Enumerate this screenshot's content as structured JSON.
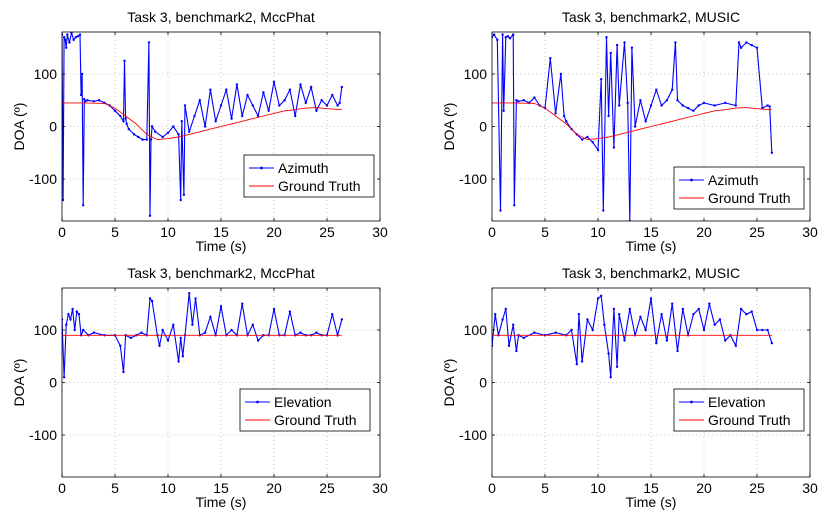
{
  "chart_data": [
    {
      "type": "line",
      "title": "Task 3, benchmark2, MccPhat",
      "xlabel": "Time (s)",
      "ylabel": "DOA (º)",
      "xlim": [
        0,
        30
      ],
      "ylim": [
        -180,
        180
      ],
      "xticks": [
        0,
        5,
        10,
        15,
        20,
        25,
        30
      ],
      "yticks": [
        -100,
        0,
        100
      ],
      "grid": true,
      "legend": "bottom-right",
      "series": [
        {
          "name": "Azimuth",
          "color": "#0000ff",
          "marker": "dot",
          "x": [
            0,
            0.1,
            0.2,
            0.3,
            0.4,
            0.5,
            0.7,
            0.9,
            1.1,
            1.3,
            1.5,
            1.7,
            1.8,
            1.9,
            2.0,
            2.1,
            2.2,
            2.4,
            3.0,
            3.5,
            4.0,
            4.5,
            5.0,
            5.5,
            5.8,
            5.9,
            6.0,
            6.1,
            6.3,
            6.8,
            7.2,
            7.6,
            8.0,
            8.2,
            8.3,
            8.4,
            8.5,
            8.8,
            9.5,
            10.0,
            10.5,
            11.0,
            11.2,
            11.3,
            11.5,
            11.6,
            12.0,
            12.5,
            13.0,
            13.5,
            14.0,
            14.5,
            15.0,
            15.5,
            16.0,
            16.5,
            17.0,
            17.5,
            18.0,
            18.5,
            19.0,
            19.5,
            20.0,
            20.5,
            21.0,
            21.5,
            22.0,
            22.5,
            23.0,
            23.5,
            24.0,
            24.5,
            25.0,
            25.5,
            26.0,
            26.2,
            26.4
          ],
          "y": [
            175,
            -140,
            170,
            165,
            150,
            175,
            160,
            178,
            165,
            170,
            172,
            175,
            60,
            100,
            -150,
            52,
            48,
            50,
            48,
            50,
            45,
            40,
            30,
            20,
            10,
            125,
            15,
            5,
            -5,
            -15,
            -20,
            -25,
            -25,
            160,
            -170,
            -25,
            0,
            -10,
            -20,
            -12,
            0,
            -15,
            -140,
            10,
            -130,
            40,
            -10,
            20,
            50,
            0,
            70,
            10,
            40,
            70,
            15,
            80,
            20,
            60,
            40,
            20,
            65,
            30,
            85,
            40,
            50,
            70,
            20,
            80,
            45,
            75,
            30,
            50,
            40,
            60,
            40,
            45,
            75
          ]
        },
        {
          "name": "Ground Truth",
          "color": "#ff0000",
          "marker": "none",
          "x": [
            0,
            2,
            4,
            5,
            6,
            7,
            8,
            9,
            10,
            11,
            12,
            13,
            14,
            15,
            16,
            17,
            18,
            19,
            20,
            21,
            22,
            23,
            24,
            25,
            26.4
          ],
          "y": [
            45,
            45,
            44,
            35,
            20,
            5,
            -15,
            -25,
            -23,
            -20,
            -15,
            -10,
            -5,
            0,
            5,
            10,
            15,
            20,
            25,
            30,
            32,
            35,
            36,
            34,
            32
          ]
        }
      ]
    },
    {
      "type": "line",
      "title": "Task 3, benchmark2, MUSIC",
      "xlabel": "Time (s)",
      "ylabel": "DOA (º)",
      "xlim": [
        0,
        30
      ],
      "ylim": [
        -180,
        180
      ],
      "xticks": [
        0,
        5,
        10,
        15,
        20,
        25,
        30
      ],
      "yticks": [
        -100,
        0,
        100
      ],
      "grid": true,
      "legend": "bottom-right",
      "series": [
        {
          "name": "Azimuth",
          "color": "#0000ff",
          "marker": "dot",
          "x": [
            0,
            0.2,
            0.5,
            0.8,
            1.0,
            1.1,
            1.3,
            1.5,
            1.7,
            2.0,
            2.1,
            2.3,
            2.5,
            3.0,
            3.5,
            4.0,
            4.5,
            5.0,
            5.5,
            6.0,
            6.5,
            6.8,
            7.0,
            7.5,
            8.0,
            8.5,
            9.0,
            9.5,
            10.0,
            10.3,
            10.5,
            10.8,
            11.0,
            11.2,
            11.5,
            11.8,
            12.0,
            12.5,
            12.8,
            13.0,
            13.2,
            13.5,
            14.0,
            14.5,
            15.0,
            15.5,
            16.0,
            16.5,
            17.0,
            17.3,
            17.5,
            18.0,
            18.5,
            19.0,
            19.5,
            20.0,
            21.0,
            22.0,
            23.0,
            23.3,
            23.5,
            24.0,
            24.5,
            25.0,
            25.5,
            26.0,
            26.2,
            26.4
          ],
          "y": [
            170,
            175,
            165,
            -160,
            175,
            30,
            170,
            172,
            168,
            175,
            -150,
            50,
            48,
            50,
            45,
            55,
            40,
            35,
            130,
            25,
            100,
            20,
            10,
            -5,
            -15,
            -25,
            -20,
            -30,
            -45,
            90,
            -160,
            170,
            20,
            140,
            -40,
            155,
            40,
            160,
            45,
            -180,
            150,
            0,
            50,
            10,
            40,
            70,
            40,
            50,
            70,
            160,
            50,
            40,
            35,
            30,
            40,
            45,
            40,
            45,
            40,
            160,
            150,
            160,
            155,
            150,
            35,
            40,
            38,
            -50
          ]
        },
        {
          "name": "Ground Truth",
          "color": "#ff0000",
          "marker": "none",
          "x": [
            0,
            2,
            4,
            5,
            6,
            7,
            8,
            9,
            10,
            11,
            12,
            13,
            14,
            15,
            16,
            17,
            18,
            19,
            20,
            21,
            22,
            23,
            24,
            25,
            26.4
          ],
          "y": [
            45,
            45,
            44,
            35,
            20,
            5,
            -15,
            -25,
            -23,
            -20,
            -15,
            -10,
            -5,
            0,
            5,
            10,
            15,
            20,
            25,
            30,
            32,
            35,
            36,
            34,
            32
          ]
        }
      ]
    },
    {
      "type": "line",
      "title": "Task 3, benchmark2, MccPhat",
      "xlabel": "Time (s)",
      "ylabel": "DOA (º)",
      "xlim": [
        0,
        30
      ],
      "ylim": [
        -180,
        180
      ],
      "xticks": [
        0,
        5,
        10,
        15,
        20,
        25,
        30
      ],
      "yticks": [
        -100,
        0,
        100
      ],
      "grid": true,
      "legend": "bottom-right",
      "series": [
        {
          "name": "Elevation",
          "color": "#0000ff",
          "marker": "dot",
          "x": [
            0,
            0.2,
            0.4,
            0.6,
            0.8,
            1.0,
            1.2,
            1.4,
            1.6,
            1.8,
            2.0,
            2.5,
            3.0,
            4.0,
            5.0,
            5.5,
            5.8,
            6.0,
            6.5,
            7.0,
            7.5,
            8.0,
            8.3,
            8.5,
            9.0,
            9.2,
            9.5,
            10.0,
            10.5,
            11.0,
            11.2,
            11.4,
            11.6,
            12.0,
            12.3,
            12.6,
            13.0,
            13.5,
            14.0,
            14.5,
            15.0,
            15.5,
            16.0,
            16.5,
            17.0,
            17.5,
            18.0,
            18.5,
            19.0,
            19.5,
            20.0,
            20.5,
            21.0,
            21.5,
            22.0,
            22.5,
            23.0,
            23.5,
            24.0,
            24.5,
            25.0,
            25.5,
            26.0,
            26.4
          ],
          "y": [
            120,
            10,
            110,
            130,
            120,
            140,
            100,
            135,
            130,
            90,
            100,
            90,
            95,
            90,
            90,
            70,
            20,
            90,
            85,
            90,
            95,
            90,
            160,
            155,
            90,
            70,
            100,
            80,
            110,
            40,
            85,
            50,
            90,
            170,
            110,
            160,
            90,
            95,
            125,
            90,
            145,
            90,
            100,
            90,
            150,
            90,
            110,
            80,
            90,
            90,
            140,
            90,
            90,
            135,
            90,
            95,
            90,
            90,
            95,
            90,
            90,
            130,
            90,
            120
          ]
        },
        {
          "name": "Ground Truth",
          "color": "#ff0000",
          "marker": "none",
          "x": [
            0,
            26.4
          ],
          "y": [
            90,
            90
          ]
        }
      ]
    },
    {
      "type": "line",
      "title": "Task 3, benchmark2, MUSIC",
      "xlabel": "Time (s)",
      "ylabel": "DOA (º)",
      "xlim": [
        0,
        30
      ],
      "ylim": [
        -180,
        180
      ],
      "xticks": [
        0,
        5,
        10,
        15,
        20,
        25,
        30
      ],
      "yticks": [
        -100,
        0,
        100
      ],
      "grid": true,
      "legend": "bottom-right",
      "series": [
        {
          "name": "Elevation",
          "color": "#0000ff",
          "marker": "dot",
          "x": [
            0,
            0.3,
            0.6,
            1.0,
            1.3,
            1.6,
            2.0,
            2.3,
            2.5,
            3.0,
            4.0,
            5.0,
            6.0,
            7.0,
            7.5,
            8.0,
            8.2,
            8.5,
            9.0,
            9.5,
            10.0,
            10.3,
            10.6,
            11.0,
            11.2,
            11.5,
            11.8,
            12.0,
            12.5,
            13.0,
            13.5,
            14.0,
            14.5,
            15.0,
            15.5,
            16.0,
            16.5,
            17.0,
            17.5,
            18.0,
            18.5,
            19.0,
            19.5,
            20.0,
            20.5,
            21.0,
            21.5,
            22.0,
            22.5,
            23.0,
            23.5,
            24.0,
            24.5,
            25.0,
            25.5,
            26.0,
            26.4
          ],
          "y": [
            70,
            130,
            90,
            120,
            140,
            70,
            110,
            60,
            90,
            85,
            95,
            90,
            95,
            90,
            100,
            35,
            130,
            40,
            120,
            100,
            160,
            165,
            110,
            55,
            10,
            140,
            30,
            130,
            80,
            140,
            90,
            125,
            100,
            160,
            75,
            130,
            80,
            150,
            60,
            140,
            90,
            130,
            140,
            100,
            150,
            110,
            120,
            80,
            90,
            70,
            140,
            130,
            135,
            100,
            100,
            100,
            75
          ]
        },
        {
          "name": "Ground Truth",
          "color": "#ff0000",
          "marker": "none",
          "x": [
            0,
            26.4
          ],
          "y": [
            90,
            90
          ]
        }
      ]
    }
  ]
}
